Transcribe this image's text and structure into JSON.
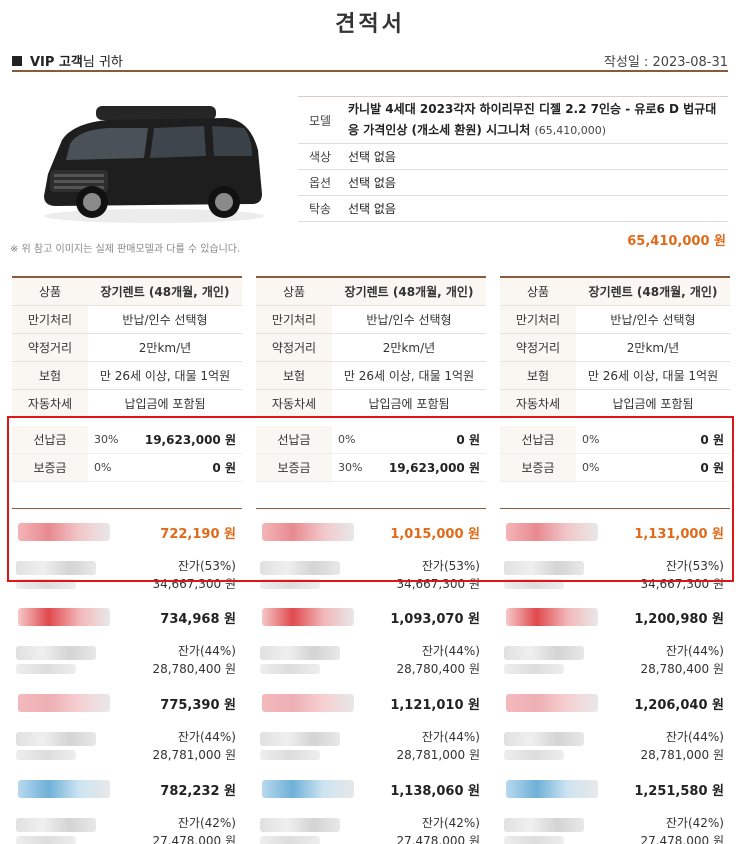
{
  "title": "견적서",
  "header": {
    "customer_bold": "VIP 고객",
    "customer_rest": "님 귀하",
    "date": "작성일 : 2023-08-31"
  },
  "vehicle": {
    "rows": [
      {
        "key": "모델",
        "value": "카니발 4세대 2023각자 하이리무진 디젤 2.2 7인승 - 유로6 D 법규대응 가격인상 (개소세 환원) 시그니처",
        "sub": "(65,410,000)"
      },
      {
        "key": "색상",
        "value": "선택 없음"
      },
      {
        "key": "옵션",
        "value": "선택 없음"
      },
      {
        "key": "탁송",
        "value": "선택 없음"
      }
    ],
    "note": "※ 위 참고 이미지는 실제 판매모델과 다를 수 있습니다.",
    "total": "65,410,000 원"
  },
  "colors": {
    "accent": "#8a5a3c",
    "highlight": "#e01515",
    "first_price": "#e06a1a"
  },
  "quotes": [
    {
      "rows": [
        {
          "key": "상품",
          "value": "장기렌트 (48개월, 개인)"
        },
        {
          "key": "만기처리",
          "value": "반납/인수 선택형"
        },
        {
          "key": "약정거리",
          "value": "2만km/년"
        },
        {
          "key": "보험",
          "value": "만 26세 이상, 대물 1억원"
        },
        {
          "key": "자동차세",
          "value": "납입금에 포함됨"
        }
      ],
      "deposits": [
        {
          "key": "선납금",
          "pct": "30%",
          "amount": "19,623,000 원"
        },
        {
          "key": "보증금",
          "pct": "0%",
          "amount": "0 원"
        }
      ],
      "offers": [
        {
          "price": "722,190 원",
          "residual": "잔가(53%)",
          "residual_value": "34,667,300 원"
        },
        {
          "price": "734,968 원",
          "residual": "잔가(44%)",
          "residual_value": "28,780,400 원"
        },
        {
          "price": "775,390 원",
          "residual": "잔가(44%)",
          "residual_value": "28,781,000 원"
        },
        {
          "price": "782,232 원",
          "residual": "잔가(42%)",
          "residual_value": "27,478,000 원"
        }
      ]
    },
    {
      "rows": [
        {
          "key": "상품",
          "value": "장기렌트 (48개월, 개인)"
        },
        {
          "key": "만기처리",
          "value": "반납/인수 선택형"
        },
        {
          "key": "약정거리",
          "value": "2만km/년"
        },
        {
          "key": "보험",
          "value": "만 26세 이상, 대물 1억원"
        },
        {
          "key": "자동차세",
          "value": "납입금에 포함됨"
        }
      ],
      "deposits": [
        {
          "key": "선납금",
          "pct": "0%",
          "amount": "0 원"
        },
        {
          "key": "보증금",
          "pct": "30%",
          "amount": "19,623,000 원"
        }
      ],
      "offers": [
        {
          "price": "1,015,000 원",
          "residual": "잔가(53%)",
          "residual_value": "34,667,300 원"
        },
        {
          "price": "1,093,070 원",
          "residual": "잔가(44%)",
          "residual_value": "28,780,400 원"
        },
        {
          "price": "1,121,010 원",
          "residual": "잔가(44%)",
          "residual_value": "28,781,000 원"
        },
        {
          "price": "1,138,060 원",
          "residual": "잔가(42%)",
          "residual_value": "27,478,000 원"
        }
      ]
    },
    {
      "rows": [
        {
          "key": "상품",
          "value": "장기렌트 (48개월, 개인)"
        },
        {
          "key": "만기처리",
          "value": "반납/인수 선택형"
        },
        {
          "key": "약정거리",
          "value": "2만km/년"
        },
        {
          "key": "보험",
          "value": "만 26세 이상, 대물 1억원"
        },
        {
          "key": "자동차세",
          "value": "납입금에 포함됨"
        }
      ],
      "deposits": [
        {
          "key": "선납금",
          "pct": "0%",
          "amount": "0 원"
        },
        {
          "key": "보증금",
          "pct": "0%",
          "amount": "0 원"
        }
      ],
      "offers": [
        {
          "price": "1,131,000 원",
          "residual": "잔가(53%)",
          "residual_value": "34,667,300 원"
        },
        {
          "price": "1,200,980 원",
          "residual": "잔가(44%)",
          "residual_value": "28,780,400 원"
        },
        {
          "price": "1,206,040 원",
          "residual": "잔가(44%)",
          "residual_value": "28,781,000 원"
        },
        {
          "price": "1,251,580 원",
          "residual": "잔가(42%)",
          "residual_value": "27,478,000 원"
        }
      ]
    }
  ]
}
